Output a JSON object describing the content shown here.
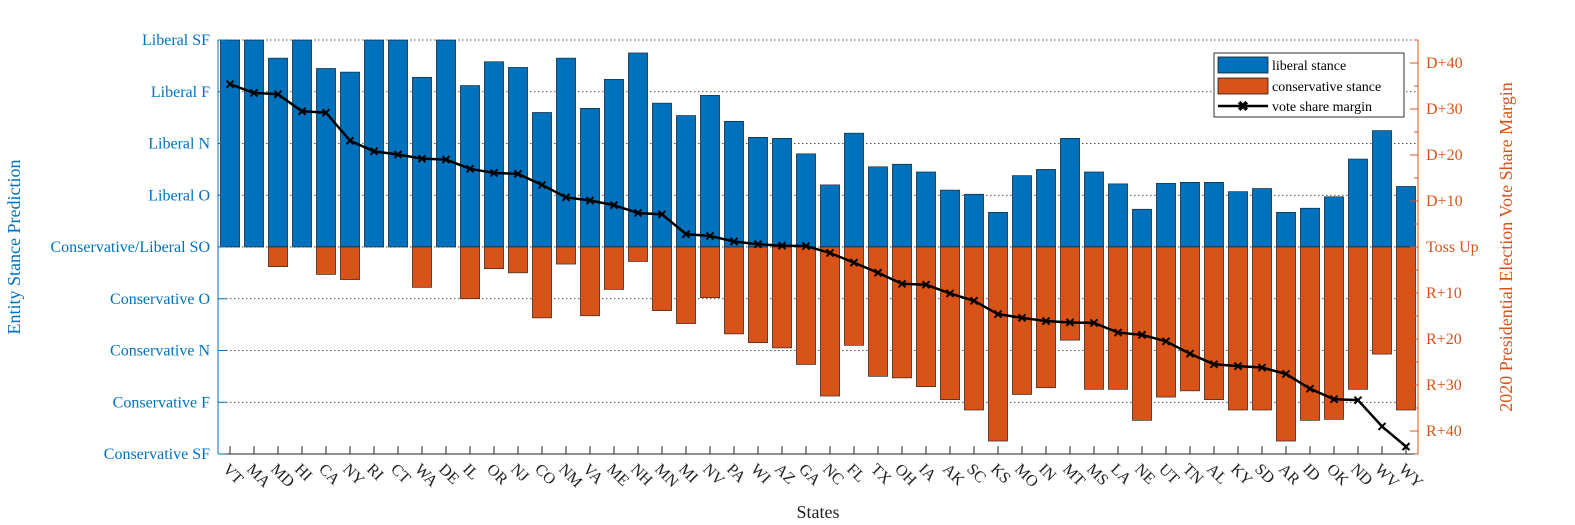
{
  "chart_data": {
    "type": "bar",
    "xlabel": "States",
    "ylabel_left": "Entity Stance Prediction",
    "ylabel_right": "2020 Presidential Election Vote Share Margin",
    "left_ticks": [
      "Conservative SF",
      "Conservative F",
      "Conservative N",
      "Conservative O",
      "Conservative/Liberal SO",
      "Liberal O",
      "Liberal N",
      "Liberal F",
      "Liberal SF"
    ],
    "left_ylim": [
      -4,
      4
    ],
    "right_ticks": [
      "R+40",
      "R+30",
      "R+20",
      "R+10",
      "Toss Up",
      "D+10",
      "D+20",
      "D+30",
      "D+40"
    ],
    "right_tick_values": [
      -40,
      -30,
      -20,
      -10,
      0,
      10,
      20,
      30,
      40
    ],
    "right_ylim": [
      -45,
      45
    ],
    "legend_position": "top-right",
    "grid": "horizontal dotted",
    "categories": [
      "VT",
      "MA",
      "MD",
      "HI",
      "CA",
      "NY",
      "RI",
      "CT",
      "WA",
      "DE",
      "IL",
      "OR",
      "NJ",
      "CO",
      "NM",
      "VA",
      "ME",
      "NH",
      "MN",
      "MI",
      "NV",
      "PA",
      "WI",
      "AZ",
      "GA",
      "NC",
      "FL",
      "TX",
      "OH",
      "IA",
      "AK",
      "SC",
      "KS",
      "MO",
      "IN",
      "MT",
      "MS",
      "LA",
      "NE",
      "UT",
      "TN",
      "AL",
      "KY",
      "SD",
      "AR",
      "ID",
      "OK",
      "ND",
      "WV",
      "WY"
    ],
    "series": [
      {
        "name": "liberal stance",
        "color": "#0072BD",
        "values": [
          4.0,
          4.0,
          3.65,
          4.0,
          3.45,
          3.38,
          4.0,
          4.0,
          3.28,
          4.0,
          3.12,
          3.58,
          3.47,
          2.6,
          3.65,
          2.68,
          3.24,
          3.75,
          2.78,
          2.54,
          2.93,
          2.43,
          2.12,
          2.1,
          1.8,
          1.2,
          2.2,
          1.55,
          1.6,
          1.45,
          1.1,
          1.02,
          0.67,
          1.38,
          1.5,
          2.1,
          1.45,
          1.22,
          0.73,
          1.23,
          1.25,
          1.25,
          1.07,
          1.13,
          0.67,
          0.75,
          0.97,
          1.7,
          2.25,
          1.17
        ]
      },
      {
        "name": "conservative stance",
        "color": "#D95319",
        "values": [
          0,
          0,
          -0.38,
          0,
          -0.53,
          -0.63,
          0,
          0,
          -0.78,
          0,
          -1.0,
          -0.42,
          -0.5,
          -1.37,
          -0.33,
          -1.33,
          -0.82,
          -0.28,
          -1.23,
          -1.48,
          -0.98,
          -1.68,
          -1.85,
          -1.95,
          -2.27,
          -2.88,
          -1.9,
          -2.5,
          -2.53,
          -2.7,
          -2.95,
          -3.15,
          -3.75,
          -2.85,
          -2.72,
          -1.8,
          -2.75,
          -2.75,
          -3.35,
          -2.9,
          -2.78,
          -2.95,
          -3.15,
          -3.15,
          -3.75,
          -3.35,
          -3.33,
          -2.75,
          -2.07,
          -3.15
        ]
      },
      {
        "name": "vote share margin",
        "color": "#000000",
        "axis": "right",
        "values": [
          35.4,
          33.5,
          33.2,
          29.5,
          29.2,
          23.1,
          20.8,
          20.1,
          19.2,
          19.0,
          17.0,
          16.1,
          15.9,
          13.5,
          10.8,
          10.1,
          9.1,
          7.4,
          7.1,
          2.8,
          2.4,
          1.2,
          0.6,
          0.3,
          0.2,
          -1.3,
          -3.4,
          -5.6,
          -8.0,
          -8.2,
          -10.1,
          -11.7,
          -14.6,
          -15.4,
          -16.1,
          -16.4,
          -16.5,
          -18.6,
          -19.1,
          -20.5,
          -23.2,
          -25.5,
          -25.9,
          -26.2,
          -27.6,
          -30.8,
          -33.1,
          -33.3,
          -39.0,
          -43.4
        ]
      }
    ]
  }
}
